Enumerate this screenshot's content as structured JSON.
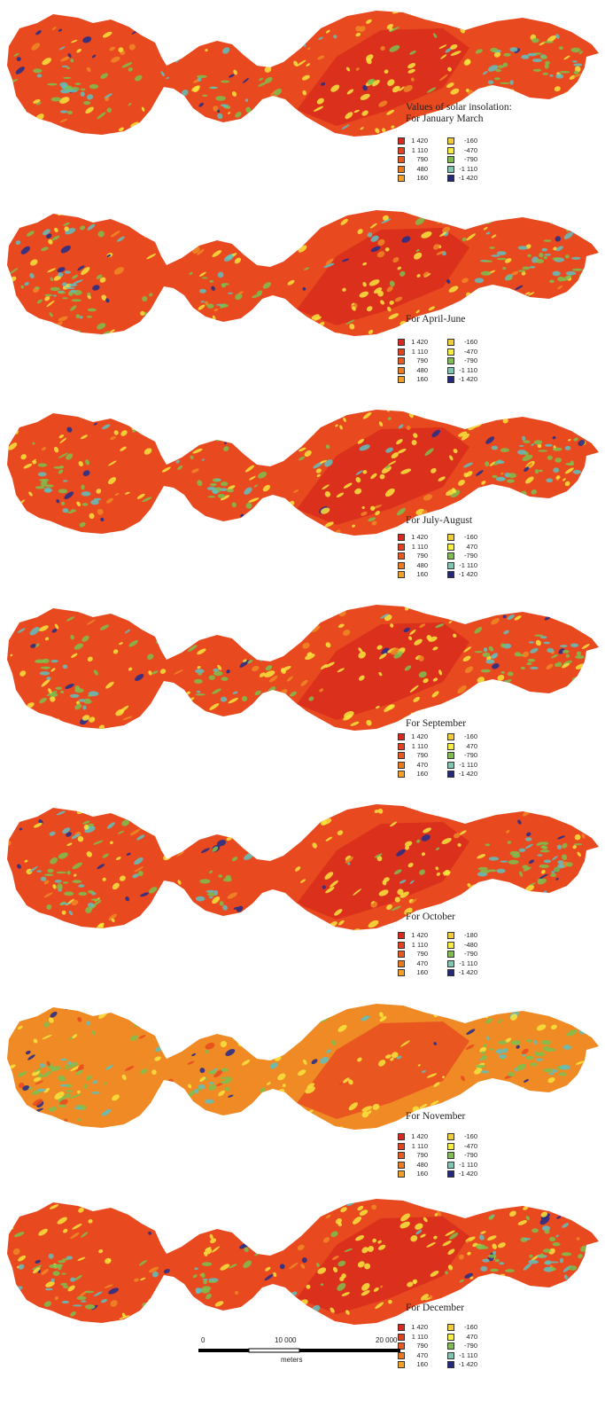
{
  "panels": [
    {
      "title_lines": [
        "Values of solar insolation:",
        "For January March"
      ],
      "legend": {
        "left": [
          "1 420",
          "1 110",
          "790",
          "480",
          "160"
        ],
        "right": [
          "-160",
          "-470",
          "-790",
          "-1 110",
          "-1 420"
        ],
        "left_colors": [
          "#d9291f",
          "#e2421f",
          "#e55a20",
          "#ea7a22",
          "#f2a02a"
        ],
        "right_colors": [
          "#f2cc38",
          "#f7ef40",
          "#7fbd52",
          "#7fc6b2",
          "#26287a"
        ]
      }
    },
    {
      "title_lines": [
        "For April-June"
      ],
      "legend": {
        "left": [
          "1 420",
          "1 110",
          "790",
          "480",
          "160"
        ],
        "right": [
          "-160",
          "-470",
          "-790",
          "-1 110",
          "-1 420"
        ],
        "left_colors": [
          "#d9291f",
          "#e2421f",
          "#e55a20",
          "#ea7a22",
          "#f2a02a"
        ],
        "right_colors": [
          "#f2cc38",
          "#f7ef40",
          "#7fbd52",
          "#7fc6b2",
          "#26287a"
        ]
      }
    },
    {
      "title_lines": [
        "For July-August"
      ],
      "legend": {
        "left": [
          "1 420",
          "1 110",
          "790",
          "480",
          "160"
        ],
        "right": [
          "-160",
          "470",
          "-790",
          "-1 110",
          "-1 420"
        ],
        "left_colors": [
          "#d9291f",
          "#e2421f",
          "#e55a20",
          "#ea7a22",
          "#f2a02a"
        ],
        "right_colors": [
          "#f2cc38",
          "#f7ef40",
          "#7fbd52",
          "#7fc6b2",
          "#26287a"
        ]
      }
    },
    {
      "title_lines": [
        "For September"
      ],
      "legend": {
        "left": [
          "1 420",
          "1 110",
          "790",
          "470",
          "160"
        ],
        "right": [
          "-160",
          "470",
          "-790",
          "-1 110",
          "-1 420"
        ],
        "left_colors": [
          "#d9291f",
          "#e2421f",
          "#e55a20",
          "#ea7a22",
          "#f2a02a"
        ],
        "right_colors": [
          "#f2cc38",
          "#f7ef40",
          "#7fbd52",
          "#7fc6b2",
          "#26287a"
        ]
      }
    },
    {
      "title_lines": [
        "For October"
      ],
      "legend": {
        "left": [
          "1 420",
          "1 110",
          "790",
          "470",
          "160"
        ],
        "right": [
          "-180",
          "-480",
          "-790",
          "-1 110",
          "-1 420"
        ],
        "left_colors": [
          "#d9291f",
          "#e2421f",
          "#e55a20",
          "#ea7a22",
          "#f2a02a"
        ],
        "right_colors": [
          "#f2cc38",
          "#f7ef40",
          "#7fbd52",
          "#7fc6b2",
          "#26287a"
        ]
      }
    },
    {
      "title_lines": [
        "For November"
      ],
      "legend": {
        "left": [
          "1 420",
          "1 110",
          "790",
          "480",
          "160"
        ],
        "right": [
          "-160",
          "-470",
          "-790",
          "-1 110",
          "-1 420"
        ],
        "left_colors": [
          "#d9291f",
          "#e2421f",
          "#e55a20",
          "#ea7a22",
          "#f2a02a"
        ],
        "right_colors": [
          "#f2cc38",
          "#f7ef40",
          "#7fbd52",
          "#7fc6b2",
          "#26287a"
        ]
      }
    },
    {
      "title_lines": [
        "For December"
      ],
      "legend": {
        "left": [
          "1 420",
          "1 110",
          "790",
          "470",
          "160"
        ],
        "right": [
          "-160",
          "470",
          "-790",
          "-1 110",
          "-1 420"
        ],
        "left_colors": [
          "#d9291f",
          "#e2421f",
          "#e55a20",
          "#ea7a22",
          "#f2a02a"
        ],
        "right_colors": [
          "#f2cc38",
          "#f7ef40",
          "#7fbd52",
          "#7fc6b2",
          "#26287a"
        ]
      }
    }
  ],
  "map_palette": {
    "base": "#e8491f",
    "dark_red": "#d62a1c",
    "orange": "#ef8a24",
    "yellow": "#f7e53c",
    "green": "#7dbf4f",
    "cyan": "#5fc0bf",
    "navy": "#2b2f86"
  },
  "scale_bar": {
    "ticks": [
      "0",
      "10 000",
      "20 000"
    ],
    "unit": "meters"
  }
}
